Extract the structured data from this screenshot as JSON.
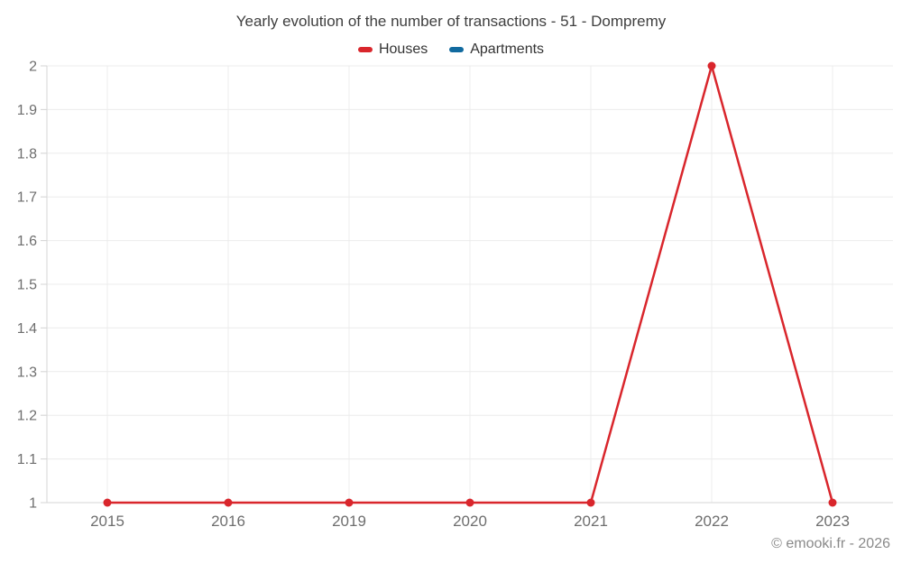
{
  "chart_data": {
    "type": "line",
    "title": "Yearly evolution of the number of transactions - 51 - Dompremy",
    "categories": [
      "2015",
      "2016",
      "2019",
      "2020",
      "2021",
      "2022",
      "2023"
    ],
    "series": [
      {
        "name": "Houses",
        "color": "#d9262c",
        "values": [
          1,
          1,
          1,
          1,
          1,
          2,
          1
        ]
      },
      {
        "name": "Apartments",
        "color": "#116a9f",
        "values": []
      }
    ],
    "xlabel": "",
    "ylabel": "",
    "ylim": [
      1,
      2
    ],
    "yticks": [
      "1",
      "1.1",
      "1.2",
      "1.3",
      "1.4",
      "1.5",
      "1.6",
      "1.7",
      "1.8",
      "1.9",
      "2"
    ],
    "grid": true,
    "legend_position": "top",
    "watermark": "© emooki.fr - 2026"
  }
}
